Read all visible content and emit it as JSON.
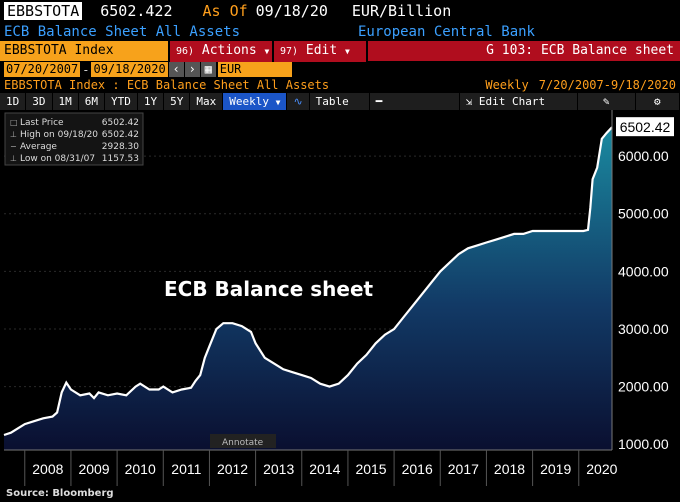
{
  "header": {
    "ticker": "EBBSTOTA",
    "last_value": "6502.422",
    "as_of_label": "As Of",
    "as_of_date": "09/18/20",
    "units": "EUR/Billion",
    "description": "ECB Balance Sheet All Assets",
    "source_name": "European Central Bank"
  },
  "toolbar": {
    "security": "EBBSTOTA Index",
    "actions_code": "96)",
    "actions_label": "Actions",
    "edit_code": "97)",
    "edit_label": "Edit",
    "function_label": "G 103: ECB Balance sheet",
    "start_date": "07/20/2007",
    "end_date": "09/18/2020",
    "currency": "EUR",
    "subtitle": "EBBSTOTA Index : ECB Balance Sheet All Assets",
    "period_label": "Weekly",
    "period_range": "7/20/2007-9/18/2020",
    "ranges": [
      "1D",
      "3D",
      "1M",
      "6M",
      "YTD",
      "1Y",
      "5Y",
      "Max"
    ],
    "frequency": "Weekly",
    "table_label": "Table",
    "edit_chart_label": "Edit Chart"
  },
  "legend": {
    "rows": [
      {
        "label": "Last Price",
        "value": "6502.42"
      },
      {
        "label": "High on 09/18/20",
        "value": "6502.42"
      },
      {
        "label": "Average",
        "value": "2928.30"
      },
      {
        "label": "Low on 08/31/07",
        "value": "1157.53"
      }
    ]
  },
  "annotate_label": "Annotate",
  "source": "Source: Bloomberg",
  "colors": {
    "line": "#ffffff",
    "fill_top": "#1a8aa0",
    "fill_bottom": "#0a0f30",
    "accent": "#f7a21b",
    "label_bg": "#b00d1e"
  },
  "chart_data": {
    "type": "area",
    "title": "ECB Balance sheet",
    "last_label": "6502.42",
    "ylim": [
      900,
      6800
    ],
    "yticks": [
      "1000.00",
      "2000.00",
      "3000.00",
      "4000.00",
      "5000.00",
      "6000.00"
    ],
    "ytick_values": [
      1000,
      2000,
      3000,
      4000,
      5000,
      6000
    ],
    "xticks": [
      "2008",
      "2009",
      "2010",
      "2011",
      "2012",
      "2013",
      "2014",
      "2015",
      "2016",
      "2017",
      "2018",
      "2019",
      "2020"
    ],
    "xlim": [
      2007.55,
      2020.72
    ],
    "series": [
      {
        "x": [
          2007.55,
          2007.7,
          2007.9,
          2008.0,
          2008.2,
          2008.4,
          2008.6,
          2008.7,
          2008.8,
          2008.9,
          2009.0,
          2009.2,
          2009.4,
          2009.5,
          2009.6,
          2009.8,
          2010.0,
          2010.2,
          2010.4,
          2010.5,
          2010.7,
          2010.9,
          2011.0,
          2011.2,
          2011.4,
          2011.6,
          2011.7,
          2011.8,
          2011.9,
          2012.0,
          2012.15,
          2012.3,
          2012.5,
          2012.7,
          2012.9,
          2013.0,
          2013.2,
          2013.4,
          2013.6,
          2013.8,
          2014.0,
          2014.2,
          2014.4,
          2014.6,
          2014.8,
          2015.0,
          2015.2,
          2015.4,
          2015.6,
          2015.8,
          2016.0,
          2016.2,
          2016.4,
          2016.6,
          2016.8,
          2017.0,
          2017.2,
          2017.4,
          2017.6,
          2017.8,
          2018.0,
          2018.2,
          2018.4,
          2018.6,
          2018.8,
          2019.0,
          2019.2,
          2019.4,
          2019.6,
          2019.8,
          2020.0,
          2020.1,
          2020.2,
          2020.25,
          2020.3,
          2020.4,
          2020.5,
          2020.6,
          2020.72
        ],
        "y": [
          1160,
          1200,
          1300,
          1350,
          1400,
          1450,
          1480,
          1550,
          1900,
          2070,
          1950,
          1850,
          1880,
          1800,
          1900,
          1850,
          1880,
          1850,
          2000,
          2050,
          1950,
          1950,
          2000,
          1900,
          1950,
          1980,
          2100,
          2200,
          2500,
          2700,
          3000,
          3100,
          3100,
          3050,
          2950,
          2750,
          2500,
          2400,
          2300,
          2250,
          2200,
          2150,
          2050,
          2000,
          2050,
          2200,
          2400,
          2550,
          2750,
          2900,
          3000,
          3200,
          3400,
          3600,
          3800,
          4000,
          4150,
          4300,
          4400,
          4450,
          4500,
          4550,
          4600,
          4650,
          4650,
          4700,
          4700,
          4700,
          4700,
          4700,
          4700,
          4700,
          4720,
          5100,
          5600,
          5800,
          6300,
          6400,
          6502
        ]
      }
    ]
  }
}
